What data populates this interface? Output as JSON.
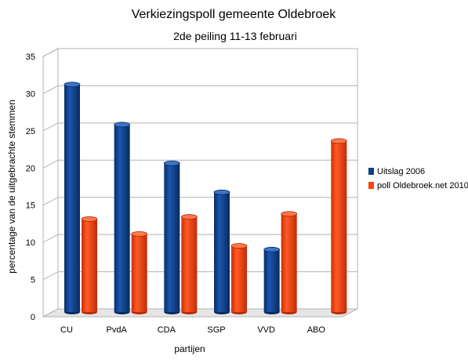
{
  "chart_data": {
    "type": "bar",
    "title": "Verkiezingspoll gemeente Oldebroek",
    "subtitle": "2de peiling 11-13 februari",
    "xlabel": "partijen",
    "ylabel": "percentage van de uitgebrachte stemmen",
    "ylim": [
      0,
      35
    ],
    "yticks": [
      "0",
      "5",
      "10",
      "15",
      "20",
      "25",
      "30",
      "35"
    ],
    "categories": [
      "CU",
      "PvdA",
      "CDA",
      "SGP",
      "VVD",
      "ABO"
    ],
    "series": [
      {
        "name": "Uitslag 2006",
        "color": "#0d3f8a",
        "values": [
          30.6,
          25.2,
          20.0,
          16.1,
          8.4,
          null
        ]
      },
      {
        "name": "poll Oldebroek.net 2010",
        "color": "#ff420e",
        "values": [
          12.5,
          10.5,
          12.8,
          8.9,
          13.2,
          23.0
        ]
      }
    ],
    "legend_position": "right",
    "grid": true,
    "style": "3d-cylinder"
  }
}
